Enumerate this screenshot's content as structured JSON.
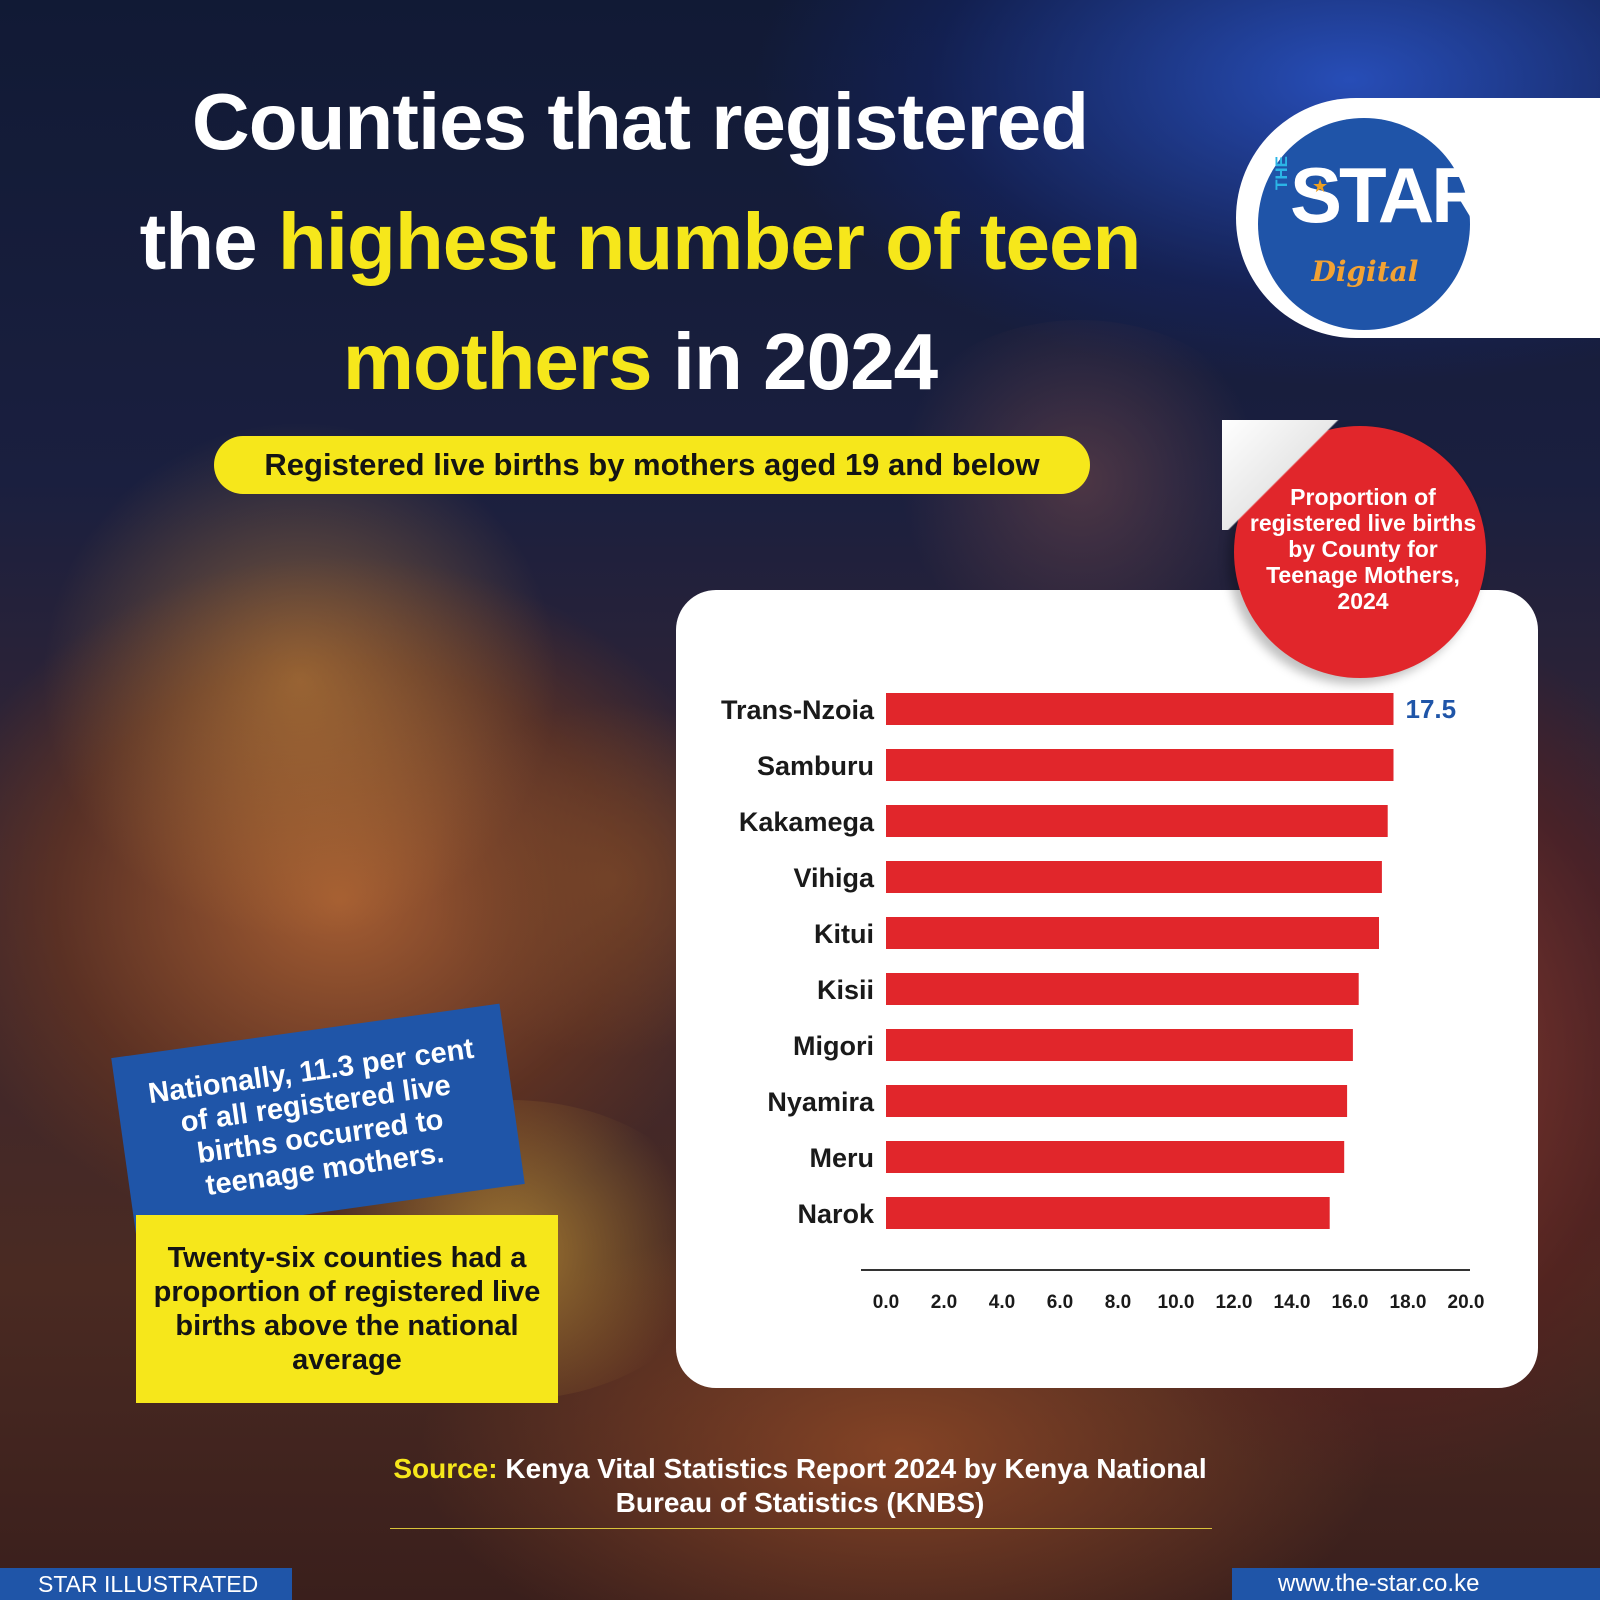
{
  "headline": {
    "line1": "Counties that registered",
    "line2_white": "the ",
    "line2_yellow": "highest number of teen",
    "line3_yellow": "mothers",
    "line3_white": " in 2024"
  },
  "subtitle": "Registered live births by mothers aged 19 and below",
  "logo": {
    "the": "THE",
    "star": "STAR",
    "digital": "Digital"
  },
  "badge": "Proportion of registered live births by County for Teenage Mothers, 2024",
  "callouts": {
    "national": "Nationally, 11.3 per cent of all registered live births occurred to teenage mothers.",
    "counties": "Twenty-six counties had a proportion of registered live births above the national average"
  },
  "source": {
    "label": "Source:",
    "text": " Kenya Vital Statistics Report 2024 by Kenya National Bureau of Statistics (KNBS)"
  },
  "footer": {
    "left": "STAR ILLUSTRATED",
    "right": "www.the-star.co.ke"
  },
  "colors": {
    "bar": "#e1262b",
    "accent_yellow": "#f6e71b",
    "brand_blue": "#1f55a8",
    "value_label": "#1f55a8"
  },
  "chart_data": {
    "type": "bar",
    "orientation": "horizontal",
    "categories": [
      "Trans-Nzoia",
      "Samburu",
      "Kakamega",
      "Vihiga",
      "Kitui",
      "Kisii",
      "Migori",
      "Nyamira",
      "Meru",
      "Narok"
    ],
    "values": [
      17.5,
      17.5,
      17.3,
      17.1,
      17.0,
      16.3,
      16.1,
      15.9,
      15.8,
      15.3
    ],
    "data_labels": [
      "17.5",
      "",
      "",
      "",
      "",
      "",
      "",
      "",
      "",
      ""
    ],
    "xlim": [
      0,
      20
    ],
    "xticks": [
      "0.0",
      "2.0",
      "4.0",
      "6.0",
      "8.0",
      "10.0",
      "12.0",
      "14.0",
      "16.0",
      "18.0",
      "20.0"
    ],
    "grid": false
  }
}
